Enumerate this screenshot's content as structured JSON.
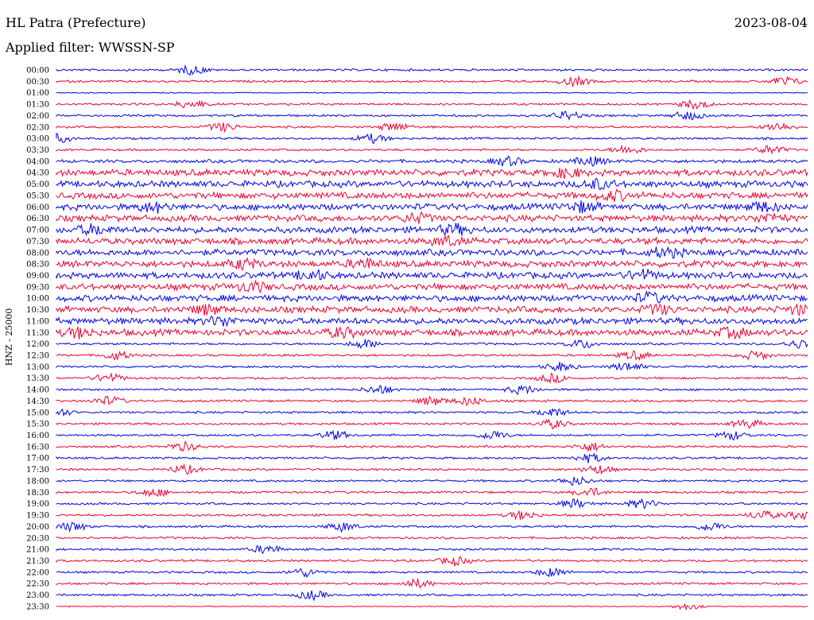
{
  "header": {
    "station": "HL Patra (Prefecture)",
    "date": "2023-08-04",
    "filter_label": "Applied filter: WWSSN-SP"
  },
  "colors": {
    "trace_a": "#0000ee",
    "trace_b": "#ee0033",
    "background": "#ffffff",
    "text": "#000000"
  },
  "chart_data": {
    "type": "line",
    "title": "HL Patra (Prefecture)",
    "subtitle": "Applied filter: WWSSN-SP",
    "ylabel": "HNZ - 25000",
    "xlabel": "",
    "grid": false,
    "legend": "none",
    "series_colors": [
      "#0000ee",
      "#ee0033"
    ],
    "rows": [
      {
        "label": "00:00",
        "color": "blue",
        "level": 1,
        "events": [
          0.18
        ]
      },
      {
        "label": "00:30",
        "color": "red",
        "level": 1,
        "events": [
          0.69,
          0.97
        ]
      },
      {
        "label": "01:00",
        "color": "blue",
        "level": 0,
        "events": []
      },
      {
        "label": "01:30",
        "color": "red",
        "level": 1,
        "events": [
          0.18,
          0.85
        ]
      },
      {
        "label": "02:00",
        "color": "blue",
        "level": 1,
        "events": [
          0.68,
          0.84
        ]
      },
      {
        "label": "02:30",
        "color": "red",
        "level": 1,
        "events": [
          0.22,
          0.45,
          0.96
        ]
      },
      {
        "label": "03:00",
        "color": "blue",
        "level": 1,
        "events": [
          0.0,
          0.42
        ]
      },
      {
        "label": "03:30",
        "color": "red",
        "level": 1,
        "events": [
          0.76,
          0.95
        ]
      },
      {
        "label": "04:00",
        "color": "blue",
        "level": 2,
        "events": [
          0.6,
          0.71
        ]
      },
      {
        "label": "04:30",
        "color": "red",
        "level": 3,
        "events": [
          0.68
        ]
      },
      {
        "label": "05:00",
        "color": "blue",
        "level": 3,
        "events": [
          0.72
        ]
      },
      {
        "label": "05:30",
        "color": "red",
        "level": 3,
        "events": [
          0.74
        ]
      },
      {
        "label": "06:00",
        "color": "blue",
        "level": 3,
        "events": [
          0.13,
          0.7,
          0.94
        ]
      },
      {
        "label": "06:30",
        "color": "red",
        "level": 3,
        "events": [
          0.48,
          0.95
        ]
      },
      {
        "label": "07:00",
        "color": "blue",
        "level": 3,
        "events": [
          0.05,
          0.53
        ]
      },
      {
        "label": "07:30",
        "color": "red",
        "level": 3,
        "events": [
          0.52
        ]
      },
      {
        "label": "08:00",
        "color": "blue",
        "level": 3,
        "events": [
          0.81
        ]
      },
      {
        "label": "08:30",
        "color": "red",
        "level": 3,
        "events": [
          0.25,
          0.41
        ]
      },
      {
        "label": "09:00",
        "color": "blue",
        "level": 3,
        "events": [
          0.34,
          0.78
        ]
      },
      {
        "label": "09:30",
        "color": "red",
        "level": 3,
        "events": [
          0.26
        ]
      },
      {
        "label": "10:00",
        "color": "blue",
        "level": 3,
        "events": [
          0.79
        ]
      },
      {
        "label": "10:30",
        "color": "red",
        "level": 3,
        "events": [
          0.2,
          0.8,
          0.99
        ]
      },
      {
        "label": "11:00",
        "color": "blue",
        "level": 3,
        "events": [
          0.22
        ]
      },
      {
        "label": "11:30",
        "color": "red",
        "level": 3,
        "events": [
          0.03,
          0.38,
          0.9
        ]
      },
      {
        "label": "12:00",
        "color": "blue",
        "level": 1,
        "events": [
          0.41,
          0.7,
          0.99
        ]
      },
      {
        "label": "12:30",
        "color": "red",
        "level": 1,
        "events": [
          0.08,
          0.77,
          0.93
        ]
      },
      {
        "label": "13:00",
        "color": "blue",
        "level": 1,
        "events": [
          0.67,
          0.76
        ]
      },
      {
        "label": "13:30",
        "color": "red",
        "level": 1,
        "events": [
          0.07,
          0.66
        ]
      },
      {
        "label": "14:00",
        "color": "blue",
        "level": 1,
        "events": [
          0.43,
          0.62
        ]
      },
      {
        "label": "14:30",
        "color": "red",
        "level": 1,
        "events": [
          0.07,
          0.5,
          0.55
        ]
      },
      {
        "label": "15:00",
        "color": "blue",
        "level": 1,
        "events": [
          0.0,
          0.66
        ]
      },
      {
        "label": "15:30",
        "color": "red",
        "level": 1,
        "events": [
          0.66,
          0.92
        ]
      },
      {
        "label": "16:00",
        "color": "blue",
        "level": 1,
        "events": [
          0.37,
          0.58,
          0.9
        ]
      },
      {
        "label": "16:30",
        "color": "red",
        "level": 1,
        "events": [
          0.17,
          0.71
        ]
      },
      {
        "label": "17:00",
        "color": "blue",
        "level": 1,
        "events": [
          0.71
        ]
      },
      {
        "label": "17:30",
        "color": "red",
        "level": 1,
        "events": [
          0.17,
          0.72
        ]
      },
      {
        "label": "18:00",
        "color": "blue",
        "level": 1,
        "events": [
          0.69
        ]
      },
      {
        "label": "18:30",
        "color": "red",
        "level": 1,
        "events": [
          0.13,
          0.71
        ]
      },
      {
        "label": "19:00",
        "color": "blue",
        "level": 1,
        "events": [
          0.69,
          0.78
        ]
      },
      {
        "label": "19:30",
        "color": "red",
        "level": 1,
        "events": [
          0.62,
          0.94,
          0.99
        ]
      },
      {
        "label": "20:00",
        "color": "blue",
        "level": 1,
        "events": [
          0.02,
          0.38,
          0.87
        ]
      },
      {
        "label": "20:30",
        "color": "red",
        "level": 1,
        "events": []
      },
      {
        "label": "21:00",
        "color": "blue",
        "level": 1,
        "events": [
          0.28
        ]
      },
      {
        "label": "21:30",
        "color": "red",
        "level": 1,
        "events": [
          0.53
        ]
      },
      {
        "label": "22:00",
        "color": "blue",
        "level": 1,
        "events": [
          0.33,
          0.66
        ]
      },
      {
        "label": "22:30",
        "color": "red",
        "level": 1,
        "events": [
          0.48
        ]
      },
      {
        "label": "23:00",
        "color": "blue",
        "level": 1,
        "events": [
          0.34
        ]
      },
      {
        "label": "23:30",
        "color": "red",
        "level": 0,
        "events": [
          0.84
        ]
      }
    ]
  }
}
